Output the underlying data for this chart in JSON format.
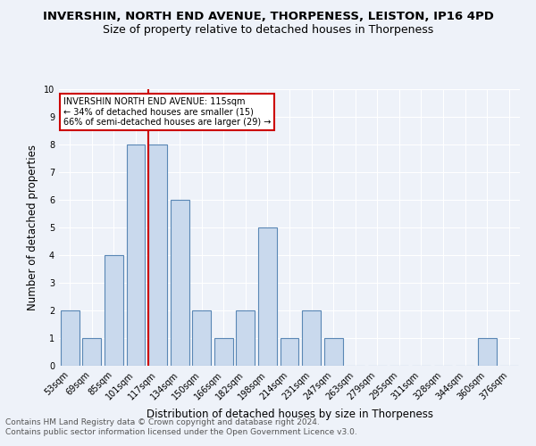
{
  "title": "INVERSHIN, NORTH END AVENUE, THORPENESS, LEISTON, IP16 4PD",
  "subtitle": "Size of property relative to detached houses in Thorpeness",
  "xlabel": "Distribution of detached houses by size in Thorpeness",
  "ylabel": "Number of detached properties",
  "categories": [
    "53sqm",
    "69sqm",
    "85sqm",
    "101sqm",
    "117sqm",
    "134sqm",
    "150sqm",
    "166sqm",
    "182sqm",
    "198sqm",
    "214sqm",
    "231sqm",
    "247sqm",
    "263sqm",
    "279sqm",
    "295sqm",
    "311sqm",
    "328sqm",
    "344sqm",
    "360sqm",
    "376sqm"
  ],
  "values": [
    2,
    1,
    4,
    8,
    8,
    6,
    2,
    1,
    2,
    5,
    1,
    2,
    1,
    0,
    0,
    0,
    0,
    0,
    0,
    1,
    0
  ],
  "bar_color": "#c9d9ed",
  "bar_edge_color": "#5a87b5",
  "red_line_x": 4,
  "ylim": [
    0,
    10
  ],
  "yticks": [
    0,
    1,
    2,
    3,
    4,
    5,
    6,
    7,
    8,
    9,
    10
  ],
  "annotation_text": "INVERSHIN NORTH END AVENUE: 115sqm\n← 34% of detached houses are smaller (15)\n66% of semi-detached houses are larger (29) →",
  "annotation_box_color": "#ffffff",
  "annotation_box_edgecolor": "#cc0000",
  "red_line_color": "#cc0000",
  "footer1": "Contains HM Land Registry data © Crown copyright and database right 2024.",
  "footer2": "Contains public sector information licensed under the Open Government Licence v3.0.",
  "background_color": "#eef2f9",
  "grid_color": "#ffffff",
  "title_fontsize": 9.5,
  "subtitle_fontsize": 9,
  "xlabel_fontsize": 8.5,
  "ylabel_fontsize": 8.5,
  "tick_fontsize": 7,
  "footer_fontsize": 6.5
}
